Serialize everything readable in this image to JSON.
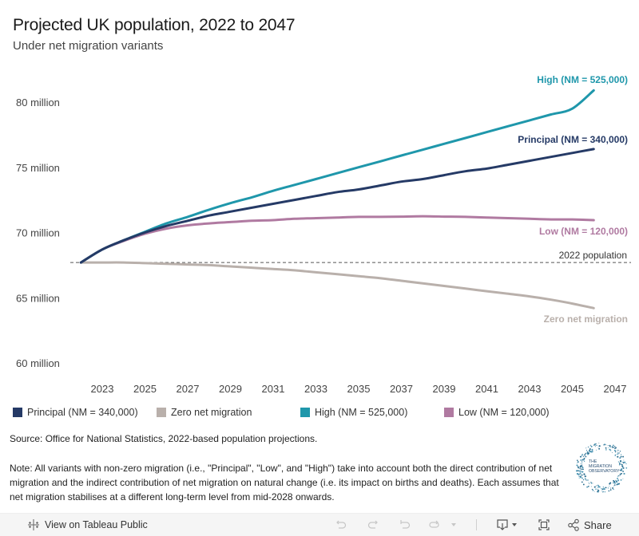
{
  "header": {
    "title": "Projected UK population, 2022 to 2047",
    "subtitle": "Under net migration variants"
  },
  "chart_data": {
    "type": "line",
    "title": "Projected UK population, 2022 to 2047",
    "subtitle": "Under net migration variants",
    "xlabel": "",
    "ylabel": "",
    "xlim": [
      2022,
      2047
    ],
    "ylim": [
      60,
      82
    ],
    "x_ticks": [
      2023,
      2025,
      2027,
      2029,
      2031,
      2033,
      2035,
      2037,
      2039,
      2041,
      2043,
      2045,
      2047
    ],
    "y_ticks": [
      {
        "value": 60,
        "label": "60 million"
      },
      {
        "value": 65,
        "label": "65 million"
      },
      {
        "value": 70,
        "label": "70 million"
      },
      {
        "value": 75,
        "label": "75 million"
      },
      {
        "value": 80,
        "label": "80 million"
      }
    ],
    "grid": false,
    "units": "million people",
    "x": [
      2022,
      2023,
      2024,
      2025,
      2026,
      2027,
      2028,
      2029,
      2030,
      2031,
      2032,
      2033,
      2034,
      2035,
      2036,
      2037,
      2038,
      2039,
      2040,
      2041,
      2042,
      2043,
      2044,
      2045,
      2046
    ],
    "series": [
      {
        "name": "Principal (NM = 340,000)",
        "label": "Principal (NM = 340,000)",
        "color": "#253a66",
        "values": [
          67.7,
          68.7,
          69.4,
          70.0,
          70.5,
          70.9,
          71.3,
          71.6,
          71.9,
          72.2,
          72.5,
          72.8,
          73.1,
          73.3,
          73.6,
          73.9,
          74.1,
          74.4,
          74.7,
          74.9,
          75.2,
          75.5,
          75.8,
          76.1,
          76.4
        ]
      },
      {
        "name": "Zero net migration",
        "label": "Zero net migration",
        "color": "#b9b0ab",
        "values": [
          67.7,
          67.7,
          67.7,
          67.65,
          67.6,
          67.55,
          67.5,
          67.4,
          67.3,
          67.2,
          67.1,
          66.95,
          66.8,
          66.65,
          66.5,
          66.3,
          66.1,
          65.9,
          65.7,
          65.5,
          65.3,
          65.1,
          64.85,
          64.55,
          64.2
        ]
      },
      {
        "name": "High (NM = 525,000)",
        "label": "High (NM = 525,000)",
        "color": "#1f97ab",
        "values": [
          67.7,
          68.7,
          69.4,
          70.05,
          70.7,
          71.2,
          71.75,
          72.25,
          72.7,
          73.2,
          73.65,
          74.1,
          74.55,
          75.0,
          75.45,
          75.9,
          76.35,
          76.8,
          77.25,
          77.7,
          78.15,
          78.6,
          79.05,
          79.5,
          80.9
        ]
      },
      {
        "name": "Low (NM = 120,000)",
        "label": "Low (NM = 120,000)",
        "color": "#b07aa1",
        "values": [
          67.7,
          68.7,
          69.35,
          69.9,
          70.3,
          70.55,
          70.7,
          70.8,
          70.9,
          70.95,
          71.05,
          71.1,
          71.15,
          71.2,
          71.2,
          71.22,
          71.25,
          71.22,
          71.2,
          71.15,
          71.1,
          71.05,
          71.0,
          71.0,
          70.95
        ]
      }
    ],
    "reference_line": {
      "label": "2022 population",
      "value": 67.7,
      "style": "dashed"
    },
    "legend_position": "bottom"
  },
  "legend": [
    {
      "label": "Principal (NM = 340,000)",
      "color": "#253a66"
    },
    {
      "label": "Zero net migration",
      "color": "#b9b0ab"
    },
    {
      "label": "High (NM = 525,000)",
      "color": "#1f97ab"
    },
    {
      "label": "Low (NM = 120,000)",
      "color": "#b07aa1"
    }
  ],
  "footer": {
    "source": "Source: Office for National Statistics, 2022-based population projections.",
    "note": "Note: All variants with non-zero migration (i.e., \"Principal\", \"Low\", and \"High\") take into account both the direct contribution of net migration and the indirect contribution of net migration on natural change (i.e. its impact on births and deaths). Each assumes that net migration stabilises at a different long-term level from mid-2028 onwards.",
    "logo_text": [
      "THE",
      "MIGRATION",
      "OBSERVATORY"
    ]
  },
  "toolbar": {
    "view_on_tableau": "View on Tableau Public",
    "share": "Share",
    "icons": {
      "tableau": "tableau-logo-icon",
      "undo": "undo-icon",
      "redo": "redo-icon",
      "revert": "revert-icon",
      "refresh": "refresh-icon",
      "download": "download-icon",
      "fullscreen": "fullscreen-icon",
      "share": "share-icon"
    }
  }
}
